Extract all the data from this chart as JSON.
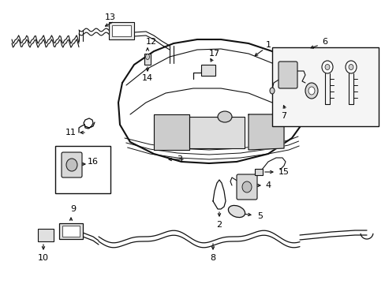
{
  "bg_color": "#ffffff",
  "line_color": "#111111",
  "label_color": "#000000",
  "figsize": [
    4.89,
    3.6
  ],
  "dpi": 100
}
